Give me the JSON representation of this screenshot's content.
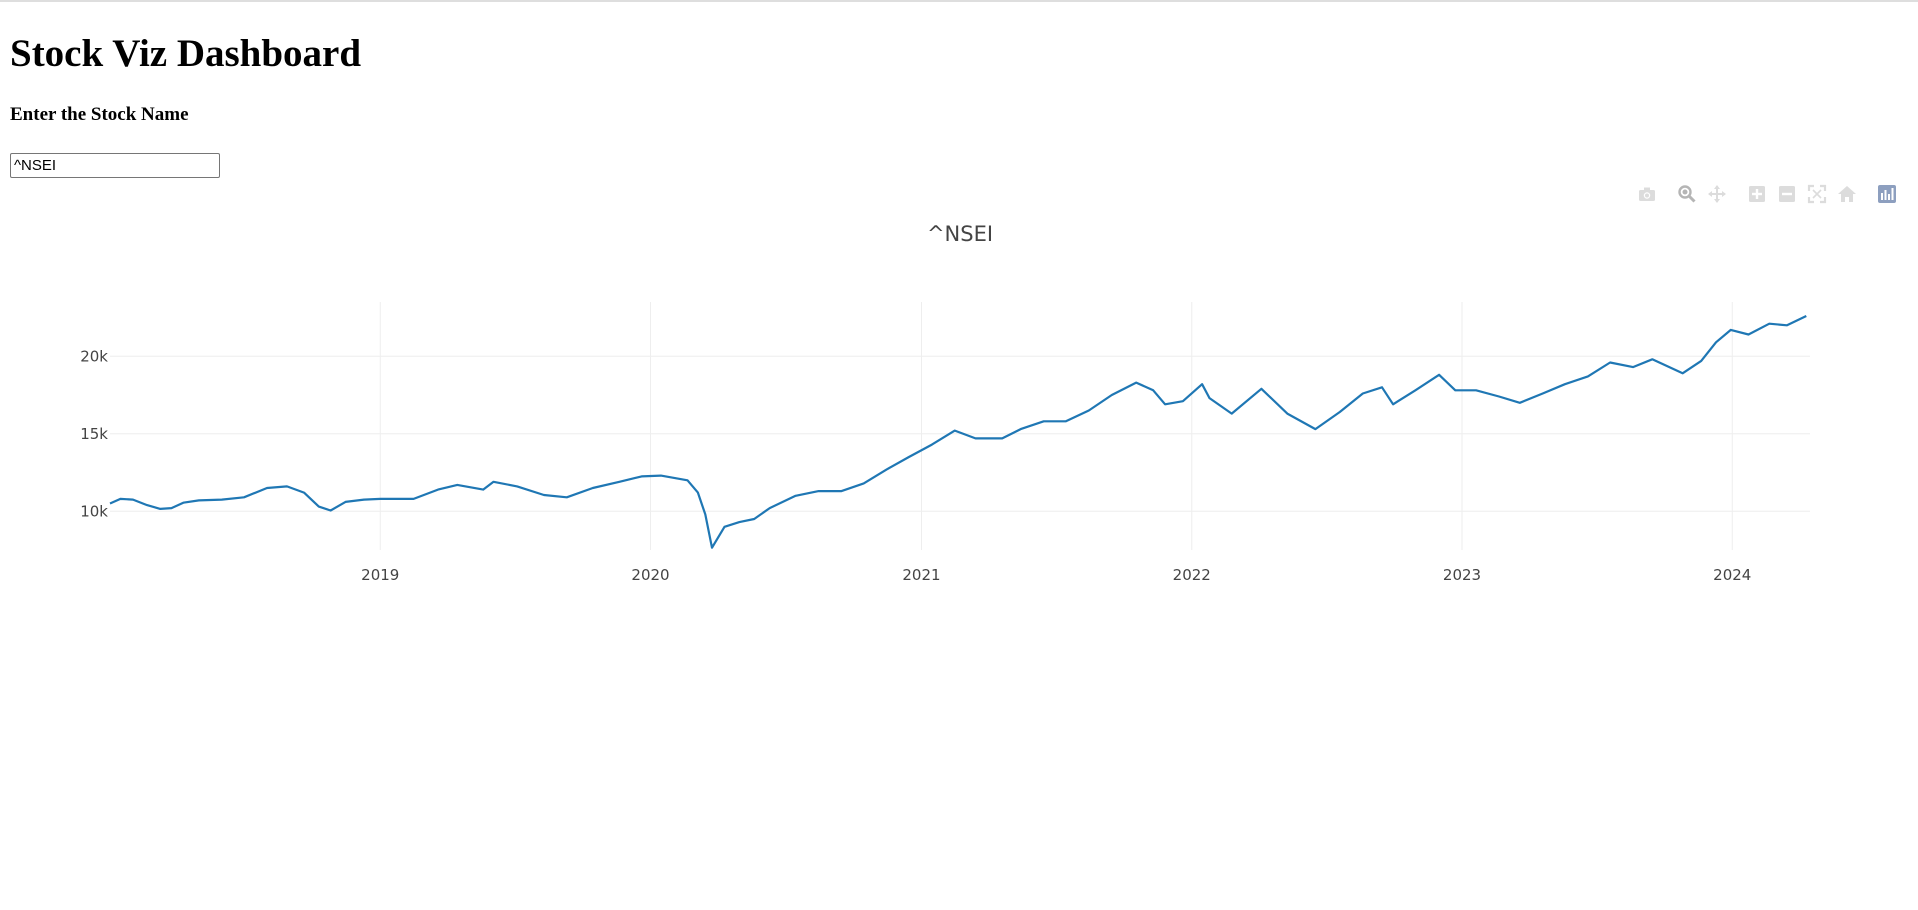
{
  "page": {
    "heading": "Stock Viz Dashboard",
    "input_label": "Enter the Stock Name",
    "input_value": "^NSEI"
  },
  "modebar": {
    "icons": [
      "camera-icon",
      "zoom-icon",
      "pan-icon",
      "zoom-in-icon",
      "zoom-out-icon",
      "autoscale-icon",
      "reset-axes-home-icon",
      "plotly-logo-icon"
    ]
  },
  "chart_data": {
    "type": "line",
    "title": "^NSEI",
    "xlabel": "",
    "ylabel": "",
    "line_color": "#1f77b4",
    "grid": true,
    "legend": "none",
    "x_range": [
      "2018-01-01",
      "2024-04-15"
    ],
    "ylim": [
      7500,
      23500
    ],
    "x_ticks": [
      "2019",
      "2020",
      "2021",
      "2022",
      "2023",
      "2024"
    ],
    "y_ticks": [
      "10k",
      "15k",
      "20k"
    ],
    "y_tick_values": [
      10000,
      15000,
      20000
    ],
    "series": [
      {
        "x": [
          "2018-01-01",
          "2018-01-15",
          "2018-02-01",
          "2018-02-20",
          "2018-03-10",
          "2018-03-25",
          "2018-04-10",
          "2018-05-01",
          "2018-06-01",
          "2018-07-01",
          "2018-08-01",
          "2018-08-28",
          "2018-09-20",
          "2018-10-10",
          "2018-10-26",
          "2018-11-15",
          "2018-12-10",
          "2019-01-01",
          "2019-02-15",
          "2019-03-20",
          "2019-04-15",
          "2019-05-20",
          "2019-06-03",
          "2019-07-05",
          "2019-08-10",
          "2019-09-10",
          "2019-10-15",
          "2019-11-20",
          "2019-12-20",
          "2020-01-15",
          "2020-02-20",
          "2020-03-05",
          "2020-03-15",
          "2020-03-24",
          "2020-04-10",
          "2020-04-30",
          "2020-05-20",
          "2020-06-10",
          "2020-07-15",
          "2020-08-15",
          "2020-09-15",
          "2020-10-15",
          "2020-11-15",
          "2020-12-15",
          "2021-01-15",
          "2021-02-15",
          "2021-03-15",
          "2021-04-20",
          "2021-05-15",
          "2021-06-15",
          "2021-07-15",
          "2021-08-15",
          "2021-09-15",
          "2021-10-18",
          "2021-11-10",
          "2021-11-26",
          "2021-12-20",
          "2022-01-15",
          "2022-01-25",
          "2022-02-24",
          "2022-04-05",
          "2022-05-10",
          "2022-06-17",
          "2022-07-20",
          "2022-08-20",
          "2022-09-15",
          "2022-09-30",
          "2022-10-30",
          "2022-12-01",
          "2022-12-23",
          "2023-01-20",
          "2023-02-20",
          "2023-03-20",
          "2023-04-20",
          "2023-05-20",
          "2023-06-20",
          "2023-07-20",
          "2023-08-20",
          "2023-09-15",
          "2023-10-26",
          "2023-11-20",
          "2023-12-10",
          "2023-12-30",
          "2024-01-23",
          "2024-02-20",
          "2024-03-15",
          "2024-04-10"
        ],
        "y": [
          10500,
          10800,
          10750,
          10400,
          10150,
          10200,
          10550,
          10700,
          10750,
          10900,
          11500,
          11600,
          11200,
          10300,
          10050,
          10600,
          10750,
          10800,
          10800,
          11400,
          11700,
          11400,
          11900,
          11600,
          11050,
          10900,
          11500,
          11900,
          12250,
          12300,
          12000,
          11200,
          9800,
          7650,
          9000,
          9300,
          9500,
          10200,
          11000,
          11300,
          11300,
          11800,
          12700,
          13500,
          14300,
          15200,
          14700,
          14700,
          15300,
          15800,
          15800,
          16500,
          17500,
          18300,
          17800,
          16900,
          17100,
          18200,
          17300,
          16300,
          17900,
          16300,
          15300,
          16400,
          17600,
          18000,
          16900,
          17800,
          18800,
          17800,
          17800,
          17400,
          17000,
          17600,
          18200,
          18700,
          19600,
          19300,
          19800,
          18900,
          19700,
          20900,
          21700,
          21400,
          22100,
          22000,
          22600
        ]
      }
    ]
  }
}
